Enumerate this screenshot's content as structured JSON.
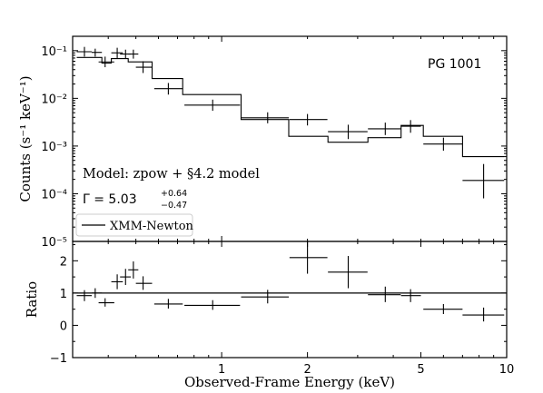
{
  "chart_data": [
    {
      "type": "scatter",
      "panel": "top",
      "object_label": "PG 1001",
      "ylabel": "Counts (s⁻¹ keV⁻¹)",
      "yscale": "log",
      "ylim": [
        1e-05,
        0.2
      ],
      "xscale": "log",
      "xlim": [
        0.3,
        10
      ],
      "y_tick_labels": [
        "10⁻⁵",
        "10⁻⁴",
        "10⁻³",
        "10⁻²",
        "10⁻¹"
      ],
      "annotations": {
        "model_line": "Model: zpow + §4.2 model",
        "gamma_label": "Γ = 5.03",
        "gamma_plus": "+0.64",
        "gamma_minus": "−0.47"
      },
      "legend": {
        "location": "lower-left",
        "entries": [
          "XMM-Newton"
        ]
      },
      "data_points": [
        {
          "x": 0.33,
          "xlo": 0.31,
          "xhi": 0.35,
          "y": 0.095,
          "ylo": 0.075,
          "yhi": 0.12
        },
        {
          "x": 0.36,
          "xlo": 0.35,
          "xhi": 0.38,
          "y": 0.092,
          "ylo": 0.075,
          "yhi": 0.11
        },
        {
          "x": 0.39,
          "xlo": 0.37,
          "xhi": 0.42,
          "y": 0.058,
          "ylo": 0.045,
          "yhi": 0.075
        },
        {
          "x": 0.43,
          "xlo": 0.41,
          "xhi": 0.45,
          "y": 0.09,
          "ylo": 0.07,
          "yhi": 0.115
        },
        {
          "x": 0.46,
          "xlo": 0.44,
          "xhi": 0.48,
          "y": 0.085,
          "ylo": 0.068,
          "yhi": 0.105
        },
        {
          "x": 0.49,
          "xlo": 0.47,
          "xhi": 0.51,
          "y": 0.085,
          "ylo": 0.068,
          "yhi": 0.105
        },
        {
          "x": 0.53,
          "xlo": 0.5,
          "xhi": 0.57,
          "y": 0.045,
          "ylo": 0.034,
          "yhi": 0.06
        },
        {
          "x": 0.65,
          "xlo": 0.58,
          "xhi": 0.73,
          "y": 0.016,
          "ylo": 0.012,
          "yhi": 0.021
        },
        {
          "x": 0.93,
          "xlo": 0.74,
          "xhi": 1.16,
          "y": 0.0072,
          "ylo": 0.0055,
          "yhi": 0.0094
        },
        {
          "x": 1.45,
          "xlo": 1.17,
          "xhi": 1.72,
          "y": 0.0039,
          "ylo": 0.003,
          "yhi": 0.0051
        },
        {
          "x": 2.0,
          "xlo": 1.73,
          "xhi": 2.35,
          "y": 0.0036,
          "ylo": 0.0027,
          "yhi": 0.0047
        },
        {
          "x": 2.78,
          "xlo": 2.36,
          "xhi": 3.25,
          "y": 0.002,
          "ylo": 0.0014,
          "yhi": 0.0028
        },
        {
          "x": 3.75,
          "xlo": 3.26,
          "xhi": 4.25,
          "y": 0.0023,
          "ylo": 0.0017,
          "yhi": 0.0031
        },
        {
          "x": 4.6,
          "xlo": 4.26,
          "xhi": 5.0,
          "y": 0.0026,
          "ylo": 0.0019,
          "yhi": 0.0035
        },
        {
          "x": 6.0,
          "xlo": 5.1,
          "xhi": 7.0,
          "y": 0.0011,
          "ylo": 0.0008,
          "yhi": 0.0015
        },
        {
          "x": 8.3,
          "xlo": 7.0,
          "xhi": 9.8,
          "y": 0.00019,
          "ylo": 8e-05,
          "yhi": 0.00042
        }
      ],
      "model_step": {
        "edges": [
          0.31,
          0.38,
          0.41,
          0.47,
          0.57,
          0.73,
          1.17,
          1.72,
          2.36,
          3.26,
          4.26,
          5.1,
          7.0,
          9.8
        ],
        "values": [
          0.072,
          0.055,
          0.068,
          0.058,
          0.026,
          0.012,
          0.0036,
          0.0016,
          0.0012,
          0.0015,
          0.0027,
          0.0016,
          0.0006
        ]
      }
    },
    {
      "type": "scatter",
      "panel": "bottom",
      "xlabel": "Observed-Frame Energy (keV)",
      "ylabel": "Ratio",
      "xscale": "log",
      "xlim": [
        0.3,
        10
      ],
      "ylim": [
        -1,
        2.6
      ],
      "x_tick_labels": [
        "1",
        "2",
        "5",
        "10"
      ],
      "y_tick_labels": [
        "−1",
        "0",
        "1",
        "2"
      ],
      "reference_line": 1,
      "data_points": [
        {
          "x": 0.33,
          "xlo": 0.31,
          "xhi": 0.35,
          "y": 0.92,
          "ylo": 0.75,
          "yhi": 1.09
        },
        {
          "x": 0.36,
          "xlo": 0.35,
          "xhi": 0.38,
          "y": 1.0,
          "ylo": 0.85,
          "yhi": 1.15
        },
        {
          "x": 0.39,
          "xlo": 0.37,
          "xhi": 0.42,
          "y": 0.7,
          "ylo": 0.58,
          "yhi": 0.84
        },
        {
          "x": 0.43,
          "xlo": 0.41,
          "xhi": 0.45,
          "y": 1.35,
          "ylo": 1.12,
          "yhi": 1.58
        },
        {
          "x": 0.46,
          "xlo": 0.44,
          "xhi": 0.48,
          "y": 1.5,
          "ylo": 1.25,
          "yhi": 1.75
        },
        {
          "x": 0.49,
          "xlo": 0.47,
          "xhi": 0.51,
          "y": 1.72,
          "ylo": 1.45,
          "yhi": 1.98
        },
        {
          "x": 0.53,
          "xlo": 0.5,
          "xhi": 0.57,
          "y": 1.3,
          "ylo": 1.1,
          "yhi": 1.52
        },
        {
          "x": 0.65,
          "xlo": 0.58,
          "xhi": 0.73,
          "y": 0.66,
          "ylo": 0.52,
          "yhi": 0.82
        },
        {
          "x": 0.93,
          "xlo": 0.74,
          "xhi": 1.16,
          "y": 0.62,
          "ylo": 0.48,
          "yhi": 0.78
        },
        {
          "x": 1.45,
          "xlo": 1.17,
          "xhi": 1.72,
          "y": 0.88,
          "ylo": 0.68,
          "yhi": 1.1
        },
        {
          "x": 2.0,
          "xlo": 1.73,
          "xhi": 2.35,
          "y": 2.1,
          "ylo": 1.6,
          "yhi": 2.62
        },
        {
          "x": 2.78,
          "xlo": 2.36,
          "xhi": 3.25,
          "y": 1.65,
          "ylo": 1.15,
          "yhi": 2.15
        },
        {
          "x": 3.75,
          "xlo": 3.26,
          "xhi": 4.25,
          "y": 0.95,
          "ylo": 0.72,
          "yhi": 1.2
        },
        {
          "x": 4.6,
          "xlo": 4.26,
          "xhi": 5.0,
          "y": 0.92,
          "ylo": 0.72,
          "yhi": 1.12
        },
        {
          "x": 6.0,
          "xlo": 5.1,
          "xhi": 7.0,
          "y": 0.5,
          "ylo": 0.35,
          "yhi": 0.66
        },
        {
          "x": 8.3,
          "xlo": 7.0,
          "xhi": 9.8,
          "y": 0.32,
          "ylo": 0.12,
          "yhi": 0.55
        }
      ]
    }
  ]
}
